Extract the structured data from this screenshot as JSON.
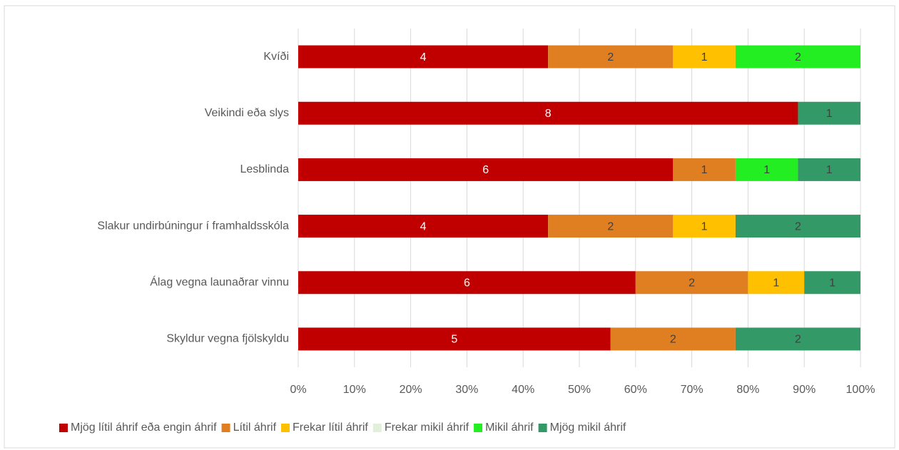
{
  "chart_data": {
    "type": "bar",
    "orientation": "horizontal",
    "stacking": "percent",
    "categories": [
      "Kvíði",
      "Veikindi eða slys",
      "Lesblinda",
      "Slakur undirbúningur í framhaldsskóla",
      "Álag vegna launaðrar vinnu",
      "Skyldur vegna fjölskyldu"
    ],
    "series": [
      {
        "name": "Mjög lítil áhrif eða engin áhrif",
        "color": "#c00000",
        "values": [
          4,
          8,
          6,
          4,
          6,
          5
        ]
      },
      {
        "name": "Lítil áhrif",
        "color": "#e07f22",
        "values": [
          2,
          null,
          1,
          2,
          2,
          2
        ]
      },
      {
        "name": "Frekar lítil áhrif",
        "color": "#ffc000",
        "values": [
          1,
          null,
          null,
          1,
          1,
          null
        ]
      },
      {
        "name": "Frekar mikil áhrif",
        "color": "#e2efda",
        "values": [
          null,
          null,
          null,
          null,
          null,
          null
        ]
      },
      {
        "name": "Mikil áhrif",
        "color": "#22ee22",
        "values": [
          2,
          null,
          1,
          null,
          null,
          null
        ]
      },
      {
        "name": "Mjög mikil áhrif",
        "color": "#339966",
        "values": [
          null,
          1,
          1,
          2,
          1,
          2
        ]
      }
    ],
    "xlim": [
      0,
      100
    ],
    "xticks": [
      {
        "value": 0,
        "label": "0%"
      },
      {
        "value": 10,
        "label": "10%"
      },
      {
        "value": 20,
        "label": "20%"
      },
      {
        "value": 30,
        "label": "30%"
      },
      {
        "value": 40,
        "label": "40%"
      },
      {
        "value": 50,
        "label": "50%"
      },
      {
        "value": 60,
        "label": "60%"
      },
      {
        "value": 70,
        "label": "70%"
      },
      {
        "value": 80,
        "label": "80%"
      },
      {
        "value": 90,
        "label": "90%"
      },
      {
        "value": 100,
        "label": "100%"
      }
    ],
    "grid": true,
    "legend": "bottom"
  }
}
